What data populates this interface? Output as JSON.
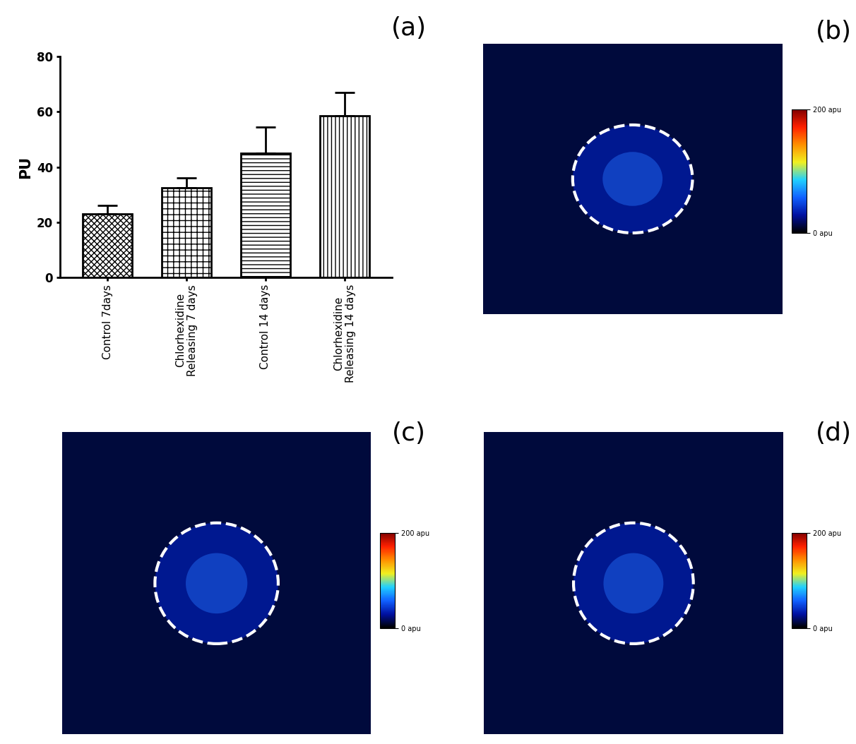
{
  "chart_data": [
    {
      "type": "bar",
      "title": "(a)",
      "categories": [
        "Control 7days",
        "Chlorhexidine\nReleasing 7 days",
        "Control 14 days",
        "Chlorhexidine\nReleasing 14 days"
      ],
      "values": [
        23,
        32.5,
        45,
        58.5
      ],
      "errors": [
        3,
        3.5,
        9.5,
        8.5
      ],
      "y_label": "PU",
      "ylim": [
        0,
        80
      ],
      "yticks": [
        0,
        20,
        40,
        60,
        80
      ],
      "color": "#ffffff"
    },
    {
      "type": "image",
      "title": "(b)",
      "colorbar_range": [
        0,
        200
      ],
      "colorbar_ticks": [
        {
          "value": 0,
          "label": "0 apu"
        },
        {
          "value": 200,
          "label": "200 apu"
        }
      ]
    },
    {
      "type": "image",
      "title": "(c)",
      "colorbar_range": [
        0,
        200
      ],
      "colorbar_ticks": [
        {
          "value": 0,
          "label": "0 apu"
        },
        {
          "value": 200,
          "label": "200 apu"
        }
      ]
    },
    {
      "type": "image",
      "title": "(d)",
      "colorbar_range": [
        0,
        200
      ],
      "colorbar_ticks": [
        {
          "value": 0,
          "label": "0 apu"
        },
        {
          "value": 200,
          "label": "200 apu"
        }
      ]
    }
  ]
}
